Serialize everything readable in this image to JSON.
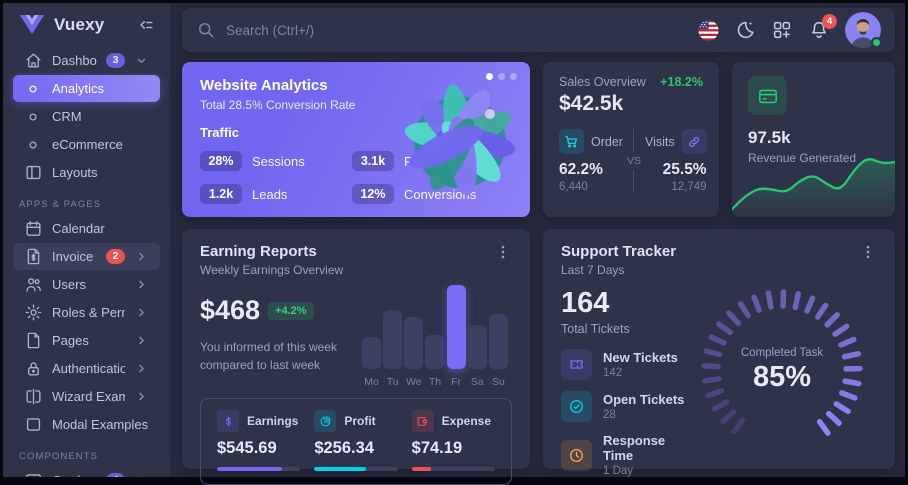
{
  "app": {
    "name": "Vuexy"
  },
  "topbar": {
    "search_placeholder": "Search (Ctrl+/)",
    "notification_count": "4"
  },
  "sidebar": {
    "items": [
      {
        "label": "Dashboard",
        "icon": "home-icon",
        "badge": "3",
        "badge_color": "purple",
        "chevron": "down"
      },
      {
        "label": "Analytics",
        "icon": "circle-icon",
        "active": true
      },
      {
        "label": "CRM",
        "icon": "circle-icon"
      },
      {
        "label": "eCommerce",
        "icon": "circle-icon"
      },
      {
        "label": "Layouts",
        "icon": "layout-icon"
      },
      {
        "section": "APPS & PAGES"
      },
      {
        "label": "Calendar",
        "icon": "calendar-icon"
      },
      {
        "label": "Invoice",
        "icon": "invoice-icon",
        "badge": "2",
        "badge_color": "red",
        "chevron": "right",
        "highlight": true
      },
      {
        "label": "Users",
        "icon": "users-icon",
        "chevron": "right"
      },
      {
        "label": "Roles & Permissions",
        "icon": "gear-icon",
        "chevron": "right"
      },
      {
        "label": "Pages",
        "icon": "page-icon",
        "chevron": "right"
      },
      {
        "label": "Authentications",
        "icon": "lock-icon",
        "chevron": "right"
      },
      {
        "label": "Wizard Examples",
        "icon": "wizard-icon",
        "chevron": "right"
      },
      {
        "label": "Modal Examples",
        "icon": "modal-icon"
      },
      {
        "section": "COMPONENTS"
      },
      {
        "label": "Card",
        "icon": "card-icon",
        "badge": "4",
        "badge_color": "purple",
        "chevron": "right"
      }
    ]
  },
  "website_analytics": {
    "title": "Website Analytics",
    "subtitle": "Total 28.5% Conversion Rate",
    "section": "Traffic",
    "stats": [
      {
        "value": "28%",
        "label": "Sessions"
      },
      {
        "value": "3.1k",
        "label": "Page Views"
      },
      {
        "value": "1.2k",
        "label": "Leads"
      },
      {
        "value": "12%",
        "label": "Conversions"
      }
    ]
  },
  "sales_overview": {
    "title": "Sales Overview",
    "change": "+18.2%",
    "total": "$42.5k",
    "vs_label": "VS",
    "order": {
      "label": "Order",
      "percent": "62.2%",
      "count": "6,440"
    },
    "visits": {
      "label": "Visits",
      "percent": "25.5%",
      "count": "12,749"
    },
    "order_bar_percent": 62
  },
  "revenue_generated": {
    "value": "97.5k",
    "label": "Revenue Generated",
    "chart_data": {
      "type": "area",
      "color": "#28C76F",
      "values": [
        6,
        28,
        40,
        38,
        33,
        52,
        62,
        46,
        36,
        70,
        90,
        80,
        82
      ]
    }
  },
  "earning_reports": {
    "title": "Earning Reports",
    "subtitle": "Weekly Earnings Overview",
    "amount": "$468",
    "change": "+4.2%",
    "description": "You informed of this week compared to last week",
    "chart_data": {
      "type": "bar",
      "categories": [
        "Mo",
        "Tu",
        "We",
        "Th",
        "Fr",
        "Sa",
        "Su"
      ],
      "values": [
        38,
        70,
        62,
        40,
        100,
        52,
        66
      ],
      "highlight_index": 4,
      "bar_color": "#3c4061",
      "highlight_color": "#7b6cf6"
    },
    "breakdown": [
      {
        "label": "Earnings",
        "amount": "$545.69",
        "icon": "dollar-icon",
        "color": "#7367F0",
        "progress": 78
      },
      {
        "label": "Profit",
        "amount": "$256.34",
        "icon": "pie-icon",
        "color": "#00CFE8",
        "progress": 62
      },
      {
        "label": "Expense",
        "amount": "$74.19",
        "icon": "wallet-icon",
        "color": "#EA5455",
        "progress": 23
      }
    ]
  },
  "support_tracker": {
    "title": "Support Tracker",
    "subtitle": "Last 7 Days",
    "total": "164",
    "total_label": "Total Tickets",
    "items": [
      {
        "label": "New Tickets",
        "value": "142",
        "icon": "ticket-icon",
        "color": "#7367F0"
      },
      {
        "label": "Open Tickets",
        "value": "28",
        "icon": "check-circle-icon",
        "color": "#00CFE8"
      },
      {
        "label": "Response Time",
        "value": "1 Day",
        "icon": "clock-icon",
        "color": "#FF9F43"
      }
    ],
    "gauge": {
      "label": "Completed Task",
      "value": "85%",
      "percent": 85
    }
  }
}
